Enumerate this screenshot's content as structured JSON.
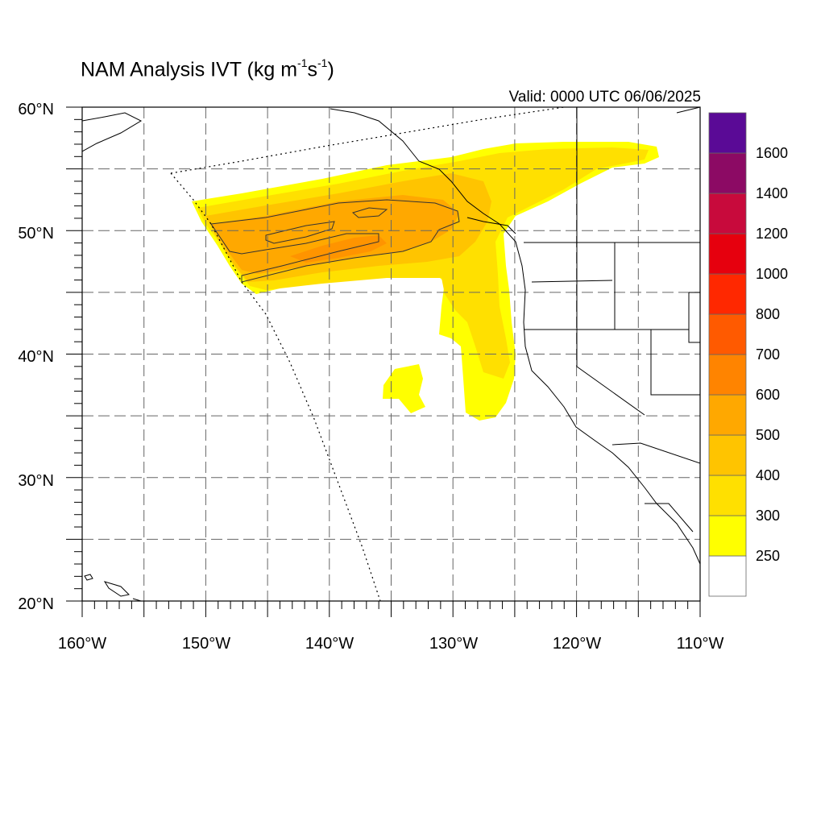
{
  "title": {
    "main": "NAM Analysis IVT (kg m",
    "exp1": "-1",
    "mid": "s",
    "exp2": "-1",
    "tail": ")"
  },
  "valid_time": "Valid: 0000 UTC 06/06/2025",
  "map": {
    "lon_range": [
      -160,
      -110
    ],
    "lat_range": [
      20,
      60
    ],
    "grid": true,
    "lon_labels": [
      "160°W",
      "150°W",
      "140°W",
      "130°W",
      "120°W",
      "110°W"
    ],
    "lat_labels": [
      "20°N",
      "30°N",
      "40°N",
      "50°N",
      "60°N"
    ]
  },
  "colorbar": {
    "levels": [
      "250",
      "300",
      "400",
      "500",
      "600",
      "700",
      "800",
      "1000",
      "1200",
      "1400",
      "1600"
    ],
    "colors": [
      "#ffffff",
      "#ffff00",
      "#ffe000",
      "#ffc400",
      "#ffa800",
      "#ff8400",
      "#ff5a00",
      "#ff2800",
      "#e6000e",
      "#c80a3c",
      "#8c0a64",
      "#5a0a96"
    ]
  },
  "ivt_colors": {
    "c250": "#ffff00",
    "c300": "#ffe000",
    "c400": "#ffc400",
    "c500": "#ffa800",
    "c600": "#ff8400"
  }
}
